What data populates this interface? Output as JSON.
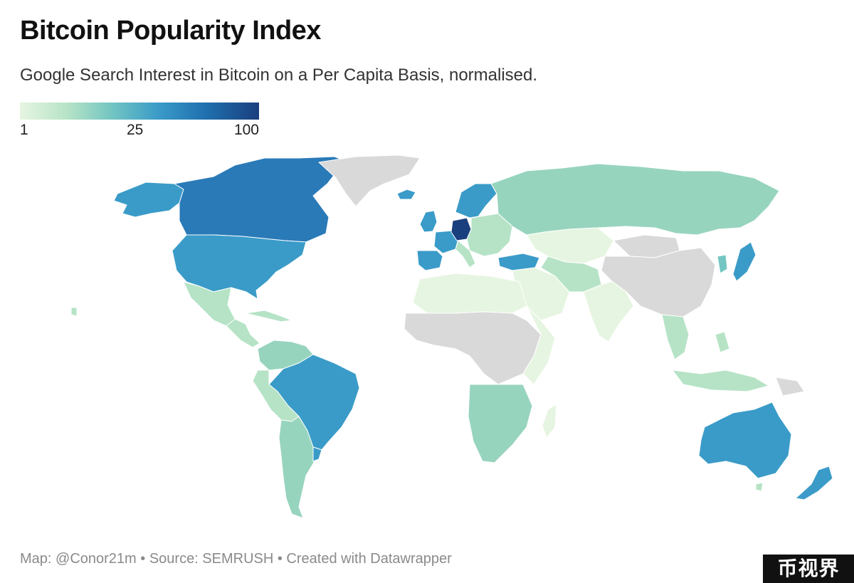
{
  "title": "Bitcoin Popularity Index",
  "subtitle": "Google Search Interest in Bitcoin on a Per Capita Basis, normalised.",
  "legend": {
    "min_label": "1",
    "mid_label": "25",
    "max_label": "100",
    "colors": [
      "#e6f5e1",
      "#b6e3c6",
      "#74c6c2",
      "#3a9bc8",
      "#1f6fae",
      "#1a3f7e"
    ]
  },
  "footer": "Map: @Conor21m • Source: SEMRUSH • Created with Datawrapper",
  "watermark": "币视界",
  "colors": {
    "no_data": "#d9d9d9",
    "very_low": "#e6f5e1",
    "low": "#b6e3c6",
    "medium_low": "#97d4be",
    "medium": "#74c6c2",
    "medium_high": "#3a9bc8",
    "high": "#2a7ab8",
    "highest": "#1a3f7e"
  },
  "regions": [
    {
      "name": "Canada",
      "level": "high"
    },
    {
      "name": "United States",
      "level": "medium_high"
    },
    {
      "name": "Alaska",
      "level": "medium_high"
    },
    {
      "name": "Greenland",
      "level": "no_data"
    },
    {
      "name": "Mexico",
      "level": "low"
    },
    {
      "name": "Central America",
      "level": "low"
    },
    {
      "name": "Brazil",
      "level": "medium_high"
    },
    {
      "name": "Venezuela / Colombia",
      "level": "medium_low"
    },
    {
      "name": "Peru / Bolivia",
      "level": "low"
    },
    {
      "name": "Argentina / Chile",
      "level": "medium_low"
    },
    {
      "name": "Uruguay",
      "level": "medium_high"
    },
    {
      "name": "Iberia",
      "level": "medium_high"
    },
    {
      "name": "France",
      "level": "medium_high"
    },
    {
      "name": "UK / Ireland",
      "level": "medium_high"
    },
    {
      "name": "Germany",
      "level": "highest"
    },
    {
      "name": "Scandinavia",
      "level": "medium_high"
    },
    {
      "name": "Eastern Europe",
      "level": "low"
    },
    {
      "name": "Turkey",
      "level": "medium_high"
    },
    {
      "name": "Russia",
      "level": "medium_low"
    },
    {
      "name": "Kazakhstan / Central Asia",
      "level": "very_low"
    },
    {
      "name": "China",
      "level": "no_data"
    },
    {
      "name": "Mongolia",
      "level": "no_data"
    },
    {
      "name": "Japan",
      "level": "medium_high"
    },
    {
      "name": "Korea",
      "level": "medium"
    },
    {
      "name": "India",
      "level": "very_low"
    },
    {
      "name": "Middle East",
      "level": "very_low"
    },
    {
      "name": "Southeast Asia",
      "level": "low"
    },
    {
      "name": "Indonesia",
      "level": "low"
    },
    {
      "name": "North Africa",
      "level": "very_low"
    },
    {
      "name": "Central Africa",
      "level": "no_data"
    },
    {
      "name": "East Africa",
      "level": "very_low"
    },
    {
      "name": "Southern Africa",
      "level": "medium_low"
    },
    {
      "name": "Madagascar",
      "level": "very_low"
    },
    {
      "name": "Australia",
      "level": "medium_high"
    },
    {
      "name": "New Zealand",
      "level": "medium_high"
    },
    {
      "name": "Papua New Guinea",
      "level": "no_data"
    },
    {
      "name": "Iceland",
      "level": "medium_high"
    }
  ]
}
